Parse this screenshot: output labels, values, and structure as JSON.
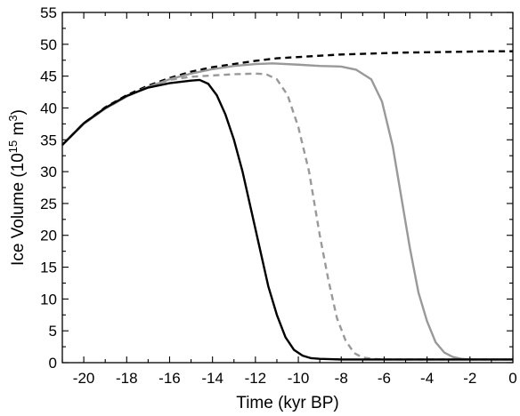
{
  "chart_data": {
    "type": "line",
    "xlabel": "Time (kyr BP)",
    "ylabel_main": "Ice Volume (10",
    "ylabel_exp": "15",
    "ylabel_unit": " m",
    "ylabel_unit_exp": "3",
    "ylabel_close": ")",
    "xlim": [
      -21,
      0
    ],
    "ylim": [
      0,
      55
    ],
    "xticks": [
      -20,
      -18,
      -16,
      -14,
      -12,
      -10,
      -8,
      -6,
      -4,
      -2,
      0
    ],
    "yticks": [
      0,
      5,
      10,
      15,
      20,
      25,
      30,
      35,
      40,
      45,
      50,
      55
    ],
    "xtick_labels": [
      "-20",
      "-18",
      "-16",
      "-14",
      "-12",
      "-10",
      "-8",
      "-6",
      "-4",
      "-2",
      "0"
    ],
    "ytick_labels": [
      "0",
      "5",
      "10",
      "15",
      "20",
      "25",
      "30",
      "35",
      "40",
      "45",
      "50",
      "55"
    ],
    "grid": false,
    "series": [
      {
        "color": "#000000",
        "dash": "dashed",
        "x": [
          -21,
          -20,
          -19,
          -18,
          -17,
          -16,
          -15,
          -14,
          -13,
          -12,
          -11,
          -10,
          -9,
          -8,
          -7,
          -6,
          -5,
          -4,
          -3,
          -2,
          -1,
          0
        ],
        "y": [
          34.2,
          37.6,
          40.1,
          42.0,
          43.5,
          44.7,
          45.7,
          46.4,
          46.9,
          47.4,
          47.8,
          48.0,
          48.2,
          48.4,
          48.5,
          48.6,
          48.7,
          48.75,
          48.8,
          48.85,
          48.9,
          48.9
        ]
      },
      {
        "color": "#999999",
        "dash": "solid",
        "x": [
          -21,
          -20,
          -19,
          -18,
          -17,
          -16,
          -15,
          -14,
          -13,
          -12,
          -11.2,
          -10,
          -9,
          -8,
          -7.3,
          -6.6,
          -6.1,
          -5.6,
          -5.2,
          -4.8,
          -4.4,
          -4.0,
          -3.6,
          -3.2,
          -2.8,
          -2.4,
          -2.0,
          -1.5,
          -1,
          0
        ],
        "y": [
          34.2,
          37.5,
          39.9,
          41.8,
          43.3,
          44.5,
          45.4,
          46.1,
          46.6,
          46.9,
          47.0,
          46.8,
          46.6,
          46.5,
          46.0,
          44.5,
          41.0,
          34.0,
          26.0,
          18.0,
          11.0,
          6.5,
          3.2,
          1.6,
          0.9,
          0.6,
          0.5,
          0.5,
          0.5,
          0.5
        ]
      },
      {
        "color": "#999999",
        "dash": "dashed",
        "x": [
          -21,
          -20,
          -19,
          -18,
          -17,
          -16,
          -15,
          -14,
          -13,
          -12,
          -11.5,
          -11.0,
          -10.5,
          -10.0,
          -9.5,
          -9.0,
          -8.6,
          -8.2,
          -7.8,
          -7.4,
          -7.0,
          -6.5,
          -6.0,
          -5.0,
          -4.0,
          -2.0,
          0
        ],
        "y": [
          34.2,
          37.5,
          39.9,
          41.8,
          43.3,
          44.4,
          44.9,
          45.1,
          45.3,
          45.4,
          45.3,
          44.5,
          42.0,
          37.0,
          30.0,
          20.0,
          13.0,
          7.0,
          3.5,
          1.5,
          0.8,
          0.6,
          0.5,
          0.5,
          0.5,
          0.5,
          0.5
        ]
      },
      {
        "color": "#000000",
        "dash": "solid",
        "x": [
          -21,
          -20,
          -19,
          -18,
          -17,
          -16,
          -15,
          -14.6,
          -14.2,
          -13.8,
          -13.4,
          -13.0,
          -12.6,
          -12.2,
          -11.8,
          -11.4,
          -11.0,
          -10.6,
          -10.2,
          -9.8,
          -9.4,
          -9.0,
          -8.5,
          -8.0,
          -7.0,
          -6.0,
          -4.0,
          -2.0,
          0
        ],
        "y": [
          34.2,
          37.6,
          40.0,
          41.9,
          43.2,
          43.9,
          44.3,
          44.4,
          43.8,
          42.0,
          39.0,
          35.0,
          30.0,
          24.0,
          18.0,
          12.0,
          7.5,
          4.0,
          2.0,
          1.1,
          0.7,
          0.6,
          0.55,
          0.5,
          0.5,
          0.5,
          0.5,
          0.5,
          0.5
        ]
      }
    ]
  }
}
